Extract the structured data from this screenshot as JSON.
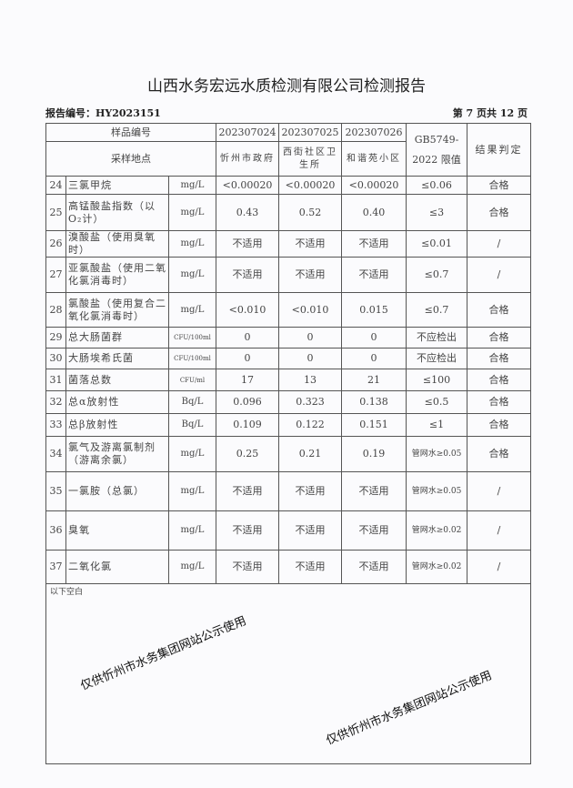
{
  "title": "山西水务宏远水质检测有限公司检测报告",
  "report_no": "报告编号：HY2023151",
  "page_no": "第 7 页共 12 页",
  "header": {
    "sample_no_label": "样品编号",
    "site_label": "采样地点",
    "samples": [
      "202307024",
      "202307025",
      "202307026"
    ],
    "sites": [
      "忻州市政府",
      "西街社区卫生所",
      "和谐苑小区"
    ],
    "limit_label": "GB5749-2022 限值",
    "result_label": "结果判定"
  },
  "rows": [
    {
      "no": "24",
      "name": "三氯甲烷",
      "unit": "mg/L",
      "v1": "<0.00020",
      "v2": "<0.00020",
      "v3": "<0.00020",
      "limit": "≤0.06",
      "result": "合格"
    },
    {
      "no": "25",
      "name": "高锰酸盐指数（以O₂计）",
      "unit": "mg/L",
      "v1": "0.43",
      "v2": "0.52",
      "v3": "0.40",
      "limit": "≤3",
      "result": "合格"
    },
    {
      "no": "26",
      "name": "溴酸盐（使用臭氧时）",
      "unit": "mg/L",
      "v1": "不适用",
      "v2": "不适用",
      "v3": "不适用",
      "limit": "≤0.01",
      "result": "/"
    },
    {
      "no": "27",
      "name": "亚氯酸盐（使用二氧化氯消毒时）",
      "unit": "mg/L",
      "v1": "不适用",
      "v2": "不适用",
      "v3": "不适用",
      "limit": "≤0.7",
      "result": "/"
    },
    {
      "no": "28",
      "name": "氯酸盐（使用复合二氧化氯消毒时）",
      "unit": "mg/L",
      "v1": "<0.010",
      "v2": "<0.010",
      "v3": "0.015",
      "limit": "≤0.7",
      "result": "合格"
    },
    {
      "no": "29",
      "name": "总大肠菌群",
      "unit": "CFU/100ml",
      "v1": "0",
      "v2": "0",
      "v3": "0",
      "limit": "不应检出",
      "result": "合格"
    },
    {
      "no": "30",
      "name": "大肠埃希氏菌",
      "unit": "CFU/100ml",
      "v1": "0",
      "v2": "0",
      "v3": "0",
      "limit": "不应检出",
      "result": "合格"
    },
    {
      "no": "31",
      "name": "菌落总数",
      "unit": "CFU/ml",
      "v1": "17",
      "v2": "13",
      "v3": "21",
      "limit": "≤100",
      "result": "合格"
    },
    {
      "no": "32",
      "name": "总α放射性",
      "unit": "Bq/L",
      "v1": "0.096",
      "v2": "0.323",
      "v3": "0.138",
      "limit": "≤0.5",
      "result": "合格"
    },
    {
      "no": "33",
      "name": "总β放射性",
      "unit": "Bq/L",
      "v1": "0.109",
      "v2": "0.122",
      "v3": "0.151",
      "limit": "≤1",
      "result": "合格"
    },
    {
      "no": "34",
      "name": "氯气及游离氯制剂（游离余氯）",
      "unit": "mg/L",
      "v1": "0.25",
      "v2": "0.21",
      "v3": "0.19",
      "limit": "管网水≥0.05",
      "result": "合格"
    },
    {
      "no": "35",
      "name": "一氯胺（总氯）",
      "unit": "mg/L",
      "v1": "不适用",
      "v2": "不适用",
      "v3": "不适用",
      "limit": "管网水≥0.05",
      "result": "/"
    },
    {
      "no": "36",
      "name": "臭氧",
      "unit": "mg/L",
      "v1": "不适用",
      "v2": "不适用",
      "v3": "不适用",
      "limit": "管网水≥0.02",
      "result": "/"
    },
    {
      "no": "37",
      "name": "二氧化氯",
      "unit": "mg/L",
      "v1": "不适用",
      "v2": "不适用",
      "v3": "不适用",
      "limit": "管网水≥0.02",
      "result": "/"
    }
  ],
  "blank_note": "以下空白",
  "watermark": "仅供忻州市水务集团网站公示使用"
}
